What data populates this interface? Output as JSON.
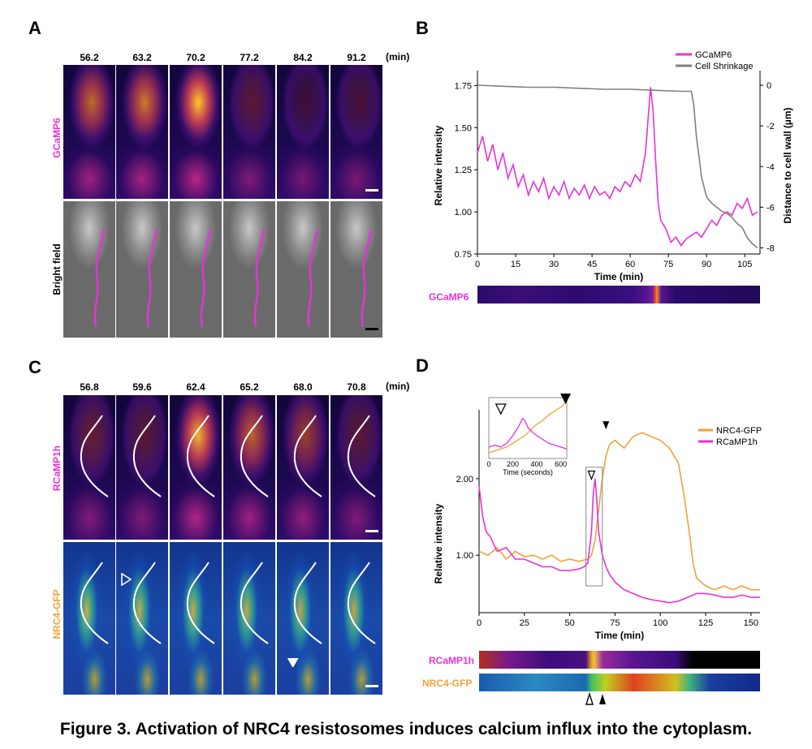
{
  "figure_caption": "Figure 3. Activation of NRC4 resistosomes induces calcium influx into the cytoplasm.",
  "panels": {
    "A": {
      "letter": "A",
      "timepoints": [
        "56.2",
        "63.2",
        "70.2",
        "77.2",
        "84.2",
        "91.2"
      ],
      "unit": "(min)",
      "row_labels": [
        "GCaMP6",
        "Bright field"
      ],
      "fire_intensity": [
        0.72,
        0.78,
        1.0,
        0.3,
        0.18,
        0.22
      ]
    },
    "C": {
      "letter": "C",
      "timepoints": [
        "56.8",
        "59.6",
        "62.4",
        "65.2",
        "68.0",
        "70.8"
      ],
      "unit": "(min)",
      "row_labels": [
        "RCaMP1h",
        "NRC4-GFP"
      ],
      "fire_intensity": [
        0.35,
        0.3,
        0.95,
        0.7,
        0.55,
        0.3
      ],
      "gfp_intensity": [
        0.45,
        0.55,
        0.6,
        0.62,
        0.7,
        0.72
      ]
    },
    "B": {
      "letter": "B",
      "kymo_label": "GCaMP6"
    },
    "D": {
      "letter": "D",
      "kymo_labels": [
        "RCaMP1h",
        "NRC4-GFP"
      ]
    }
  },
  "colors": {
    "magenta": "#e533d8",
    "orange": "#f0a23c",
    "gray": "#808080"
  },
  "chart_data": [
    {
      "id": "B",
      "type": "line",
      "title": "",
      "xlabel": "Time (min)",
      "ylabel": "Relative intensity",
      "y2label": "Distance to cell wall (µm)",
      "xlim": [
        0,
        111
      ],
      "ylim": [
        0.75,
        1.8
      ],
      "y2lim": [
        -8.3,
        0.4
      ],
      "xticks": [
        0,
        15,
        30,
        45,
        60,
        75,
        90,
        105
      ],
      "yticks": [
        0.75,
        1.0,
        1.25,
        1.5,
        1.75
      ],
      "ytick_labels": [
        "0.75",
        "1.00",
        "1.25",
        "1.50",
        "1.75"
      ],
      "y2ticks": [
        0,
        -2,
        -4,
        -6,
        -8
      ],
      "legend": [
        "GCaMP6",
        "Cell Shrinkage"
      ],
      "legend_position": "top-right",
      "series": [
        {
          "name": "GCaMP6",
          "axis": "left",
          "x": [
            0,
            2,
            4,
            6,
            8,
            10,
            12,
            14,
            16,
            18,
            20,
            22,
            24,
            26,
            28,
            30,
            32,
            34,
            36,
            38,
            40,
            42,
            44,
            46,
            48,
            50,
            52,
            54,
            56,
            58,
            60,
            62,
            64,
            66,
            67,
            68,
            69,
            70,
            71,
            72,
            74,
            76,
            78,
            80,
            82,
            84,
            86,
            88,
            90,
            92,
            94,
            96,
            98,
            100,
            102,
            104,
            106,
            108,
            110
          ],
          "y": [
            1.35,
            1.45,
            1.3,
            1.4,
            1.25,
            1.35,
            1.2,
            1.28,
            1.15,
            1.22,
            1.1,
            1.18,
            1.12,
            1.2,
            1.08,
            1.15,
            1.1,
            1.18,
            1.08,
            1.14,
            1.1,
            1.16,
            1.08,
            1.15,
            1.1,
            1.12,
            1.08,
            1.15,
            1.12,
            1.18,
            1.15,
            1.22,
            1.18,
            1.35,
            1.55,
            1.74,
            1.6,
            1.3,
            1.05,
            0.95,
            0.9,
            0.82,
            0.85,
            0.8,
            0.84,
            0.86,
            0.88,
            0.85,
            0.9,
            0.95,
            0.92,
            0.98,
            1.0,
            0.98,
            1.05,
            1.02,
            1.08,
            0.98,
            1.0
          ]
        },
        {
          "name": "Cell Shrinkage",
          "axis": "right",
          "x": [
            0,
            10,
            20,
            30,
            40,
            50,
            60,
            70,
            80,
            84,
            85,
            86,
            87,
            88,
            89,
            90,
            92,
            94,
            96,
            98,
            100,
            102,
            104,
            106,
            108,
            110
          ],
          "y": [
            0.0,
            -0.05,
            -0.1,
            -0.1,
            -0.15,
            -0.2,
            -0.2,
            -0.25,
            -0.3,
            -0.3,
            -1.0,
            -2.5,
            -3.5,
            -4.5,
            -5.0,
            -5.5,
            -5.8,
            -6.0,
            -6.2,
            -6.3,
            -6.5,
            -6.8,
            -7.0,
            -7.5,
            -7.8,
            -8.0
          ]
        }
      ]
    },
    {
      "id": "D",
      "type": "line",
      "title": "",
      "xlabel": "Time (min)",
      "ylabel": "Relative intensity",
      "xlim": [
        0,
        155
      ],
      "ylim": [
        0.25,
        2.9
      ],
      "xticks": [
        0,
        25,
        50,
        75,
        100,
        125,
        150
      ],
      "yticks": [
        1.0,
        2.0
      ],
      "ytick_labels": [
        "1.00",
        "2.00"
      ],
      "legend": [
        "NRC4-GFP",
        "RCaMP1h"
      ],
      "legend_position": "top-right",
      "series": [
        {
          "name": "NRC4-GFP",
          "x": [
            0,
            5,
            10,
            15,
            20,
            25,
            30,
            35,
            40,
            45,
            50,
            55,
            60,
            62,
            64,
            66,
            68,
            70,
            72,
            75,
            80,
            85,
            90,
            95,
            100,
            105,
            110,
            113,
            116,
            118,
            120,
            125,
            130,
            135,
            140,
            145,
            150,
            155
          ],
          "y": [
            1.05,
            1.0,
            1.1,
            0.95,
            1.05,
            0.98,
            1.0,
            0.95,
            1.0,
            0.92,
            0.95,
            0.92,
            0.95,
            1.0,
            1.2,
            1.6,
            2.0,
            2.3,
            2.45,
            2.5,
            2.4,
            2.55,
            2.6,
            2.55,
            2.5,
            2.4,
            2.2,
            1.8,
            1.3,
            0.9,
            0.7,
            0.6,
            0.55,
            0.6,
            0.55,
            0.6,
            0.55,
            0.55
          ]
        },
        {
          "name": "RCaMP1h",
          "x": [
            0,
            2,
            4,
            6,
            10,
            15,
            20,
            25,
            30,
            35,
            40,
            45,
            50,
            55,
            58,
            60,
            62,
            63,
            64,
            65,
            66,
            68,
            70,
            72,
            75,
            80,
            85,
            90,
            95,
            100,
            105,
            110,
            115,
            120,
            125,
            130,
            135,
            140,
            145,
            150,
            155
          ],
          "y": [
            1.9,
            1.5,
            1.3,
            1.25,
            1.05,
            1.1,
            0.95,
            0.95,
            0.9,
            0.85,
            0.85,
            0.8,
            0.8,
            0.82,
            0.85,
            0.9,
            1.3,
            1.8,
            2.0,
            1.7,
            1.3,
            1.0,
            0.85,
            0.75,
            0.65,
            0.55,
            0.5,
            0.45,
            0.42,
            0.4,
            0.38,
            0.4,
            0.45,
            0.5,
            0.5,
            0.48,
            0.45,
            0.45,
            0.48,
            0.45,
            0.45
          ]
        }
      ],
      "inset": {
        "xlabel": "Time (seconds)",
        "xticks": [
          0,
          200,
          400,
          600
        ],
        "xlim": [
          0,
          650
        ],
        "ylim": [
          0.6,
          2.2
        ],
        "series": [
          {
            "name": "NRC4-GFP",
            "x": [
              0,
              50,
              100,
              150,
              200,
              250,
              300,
              350,
              400,
              450,
              500,
              550,
              600,
              650
            ],
            "y": [
              0.75,
              0.8,
              0.85,
              0.9,
              1.0,
              1.1,
              1.2,
              1.35,
              1.5,
              1.6,
              1.75,
              1.85,
              1.95,
              2.1
            ]
          },
          {
            "name": "RCaMP1h",
            "x": [
              0,
              50,
              100,
              150,
              200,
              250,
              280,
              300,
              330,
              360,
              400,
              450,
              500,
              550,
              600,
              650
            ],
            "y": [
              0.9,
              0.95,
              0.9,
              1.0,
              1.2,
              1.45,
              1.65,
              1.6,
              1.4,
              1.3,
              1.2,
              1.1,
              1.0,
              0.95,
              0.9,
              0.85
            ]
          }
        ]
      }
    }
  ]
}
